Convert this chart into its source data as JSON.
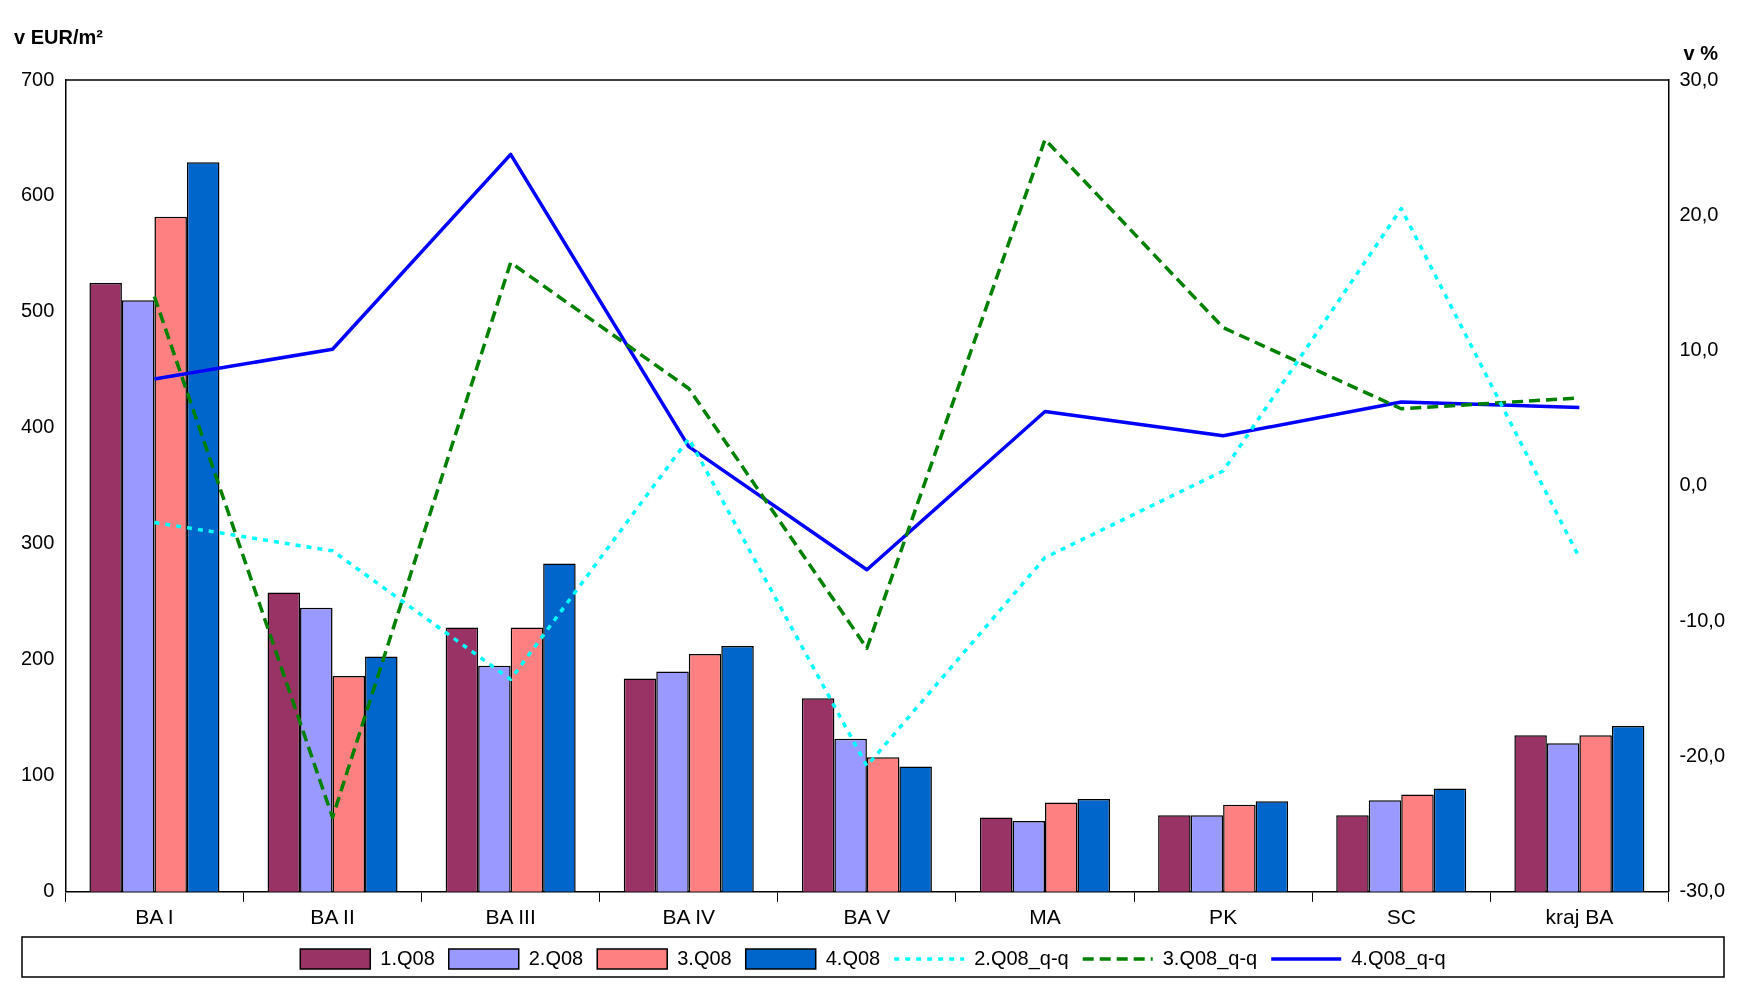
{
  "chart_data": {
    "type": "bar",
    "ylabel": "v EUR/m²",
    "y2label": "v %",
    "categories": [
      "BA I",
      "BA II",
      "BA III",
      "BA IV",
      "BA V",
      "MA",
      "PK",
      "SC",
      "kraj BA"
    ],
    "series": [
      {
        "name": "1.Q08",
        "color": "#993366",
        "values": [
          525,
          258,
          228,
          184,
          167,
          64,
          66,
          66,
          135
        ]
      },
      {
        "name": "2.Q08",
        "color": "#9999ff",
        "values": [
          510,
          245,
          195,
          190,
          132,
          61,
          66,
          79,
          128
        ]
      },
      {
        "name": "3.Q08",
        "color": "#ff8080",
        "values": [
          582,
          186,
          228,
          205,
          116,
          77,
          75,
          84,
          135
        ]
      },
      {
        "name": "4.Q08",
        "color": "#0066cc",
        "values": [
          629,
          203,
          283,
          212,
          108,
          80,
          78,
          89,
          143
        ]
      },
      {
        "name": "2.Q08_q-q",
        "type": "line",
        "axis": "y2",
        "line_style": "dotted",
        "color": "#00ffff",
        "values": [
          -2.7,
          -4.8,
          -14.3,
          3.5,
          -20.7,
          -5.3,
          1.1,
          20.5,
          -5.3
        ]
      },
      {
        "name": "3.Q08_q-q",
        "type": "line",
        "axis": "y2",
        "line_style": "dashed",
        "color": "#008000",
        "values": [
          14.0,
          -24.5,
          16.5,
          7.2,
          -12.0,
          25.6,
          11.7,
          5.7,
          6.5
        ]
      },
      {
        "name": "4.Q08_q-q",
        "type": "line",
        "axis": "y2",
        "line_style": "solid",
        "color": "#0000ff",
        "values": [
          7.9,
          10.1,
          24.5,
          2.9,
          -6.2,
          5.5,
          3.7,
          6.2,
          5.8
        ]
      }
    ],
    "ylim": [
      0,
      700
    ],
    "yticks": [
      0,
      100,
      200,
      300,
      400,
      500,
      600,
      700
    ],
    "y2lim": [
      -30,
      30
    ],
    "y2ticks": [
      {
        "value": -30,
        "label": "-30,0"
      },
      {
        "value": -20,
        "label": "-20,0"
      },
      {
        "value": -10,
        "label": "-10,0"
      },
      {
        "value": 0,
        "label": "0,0"
      },
      {
        "value": 10,
        "label": "10,0"
      },
      {
        "value": 20,
        "label": "20,0"
      },
      {
        "value": 30,
        "label": "30,0"
      }
    ],
    "grid": false,
    "legend": "bottom"
  }
}
